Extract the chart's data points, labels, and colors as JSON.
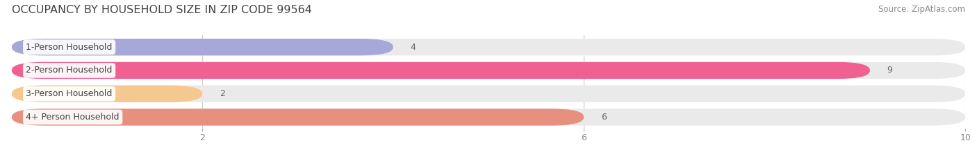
{
  "title": "OCCUPANCY BY HOUSEHOLD SIZE IN ZIP CODE 99564",
  "source": "Source: ZipAtlas.com",
  "categories": [
    "1-Person Household",
    "2-Person Household",
    "3-Person Household",
    "4+ Person Household"
  ],
  "values": [
    4,
    9,
    2,
    6
  ],
  "bar_colors": [
    "#a8a8d8",
    "#f06090",
    "#f5c890",
    "#e89080"
  ],
  "bar_bg_color": "#eaeaea",
  "xlim": [
    0,
    10
  ],
  "xticks": [
    2,
    6,
    10
  ],
  "background_color": "#ffffff",
  "title_fontsize": 11.5,
  "label_fontsize": 9,
  "value_fontsize": 9,
  "source_fontsize": 8.5
}
